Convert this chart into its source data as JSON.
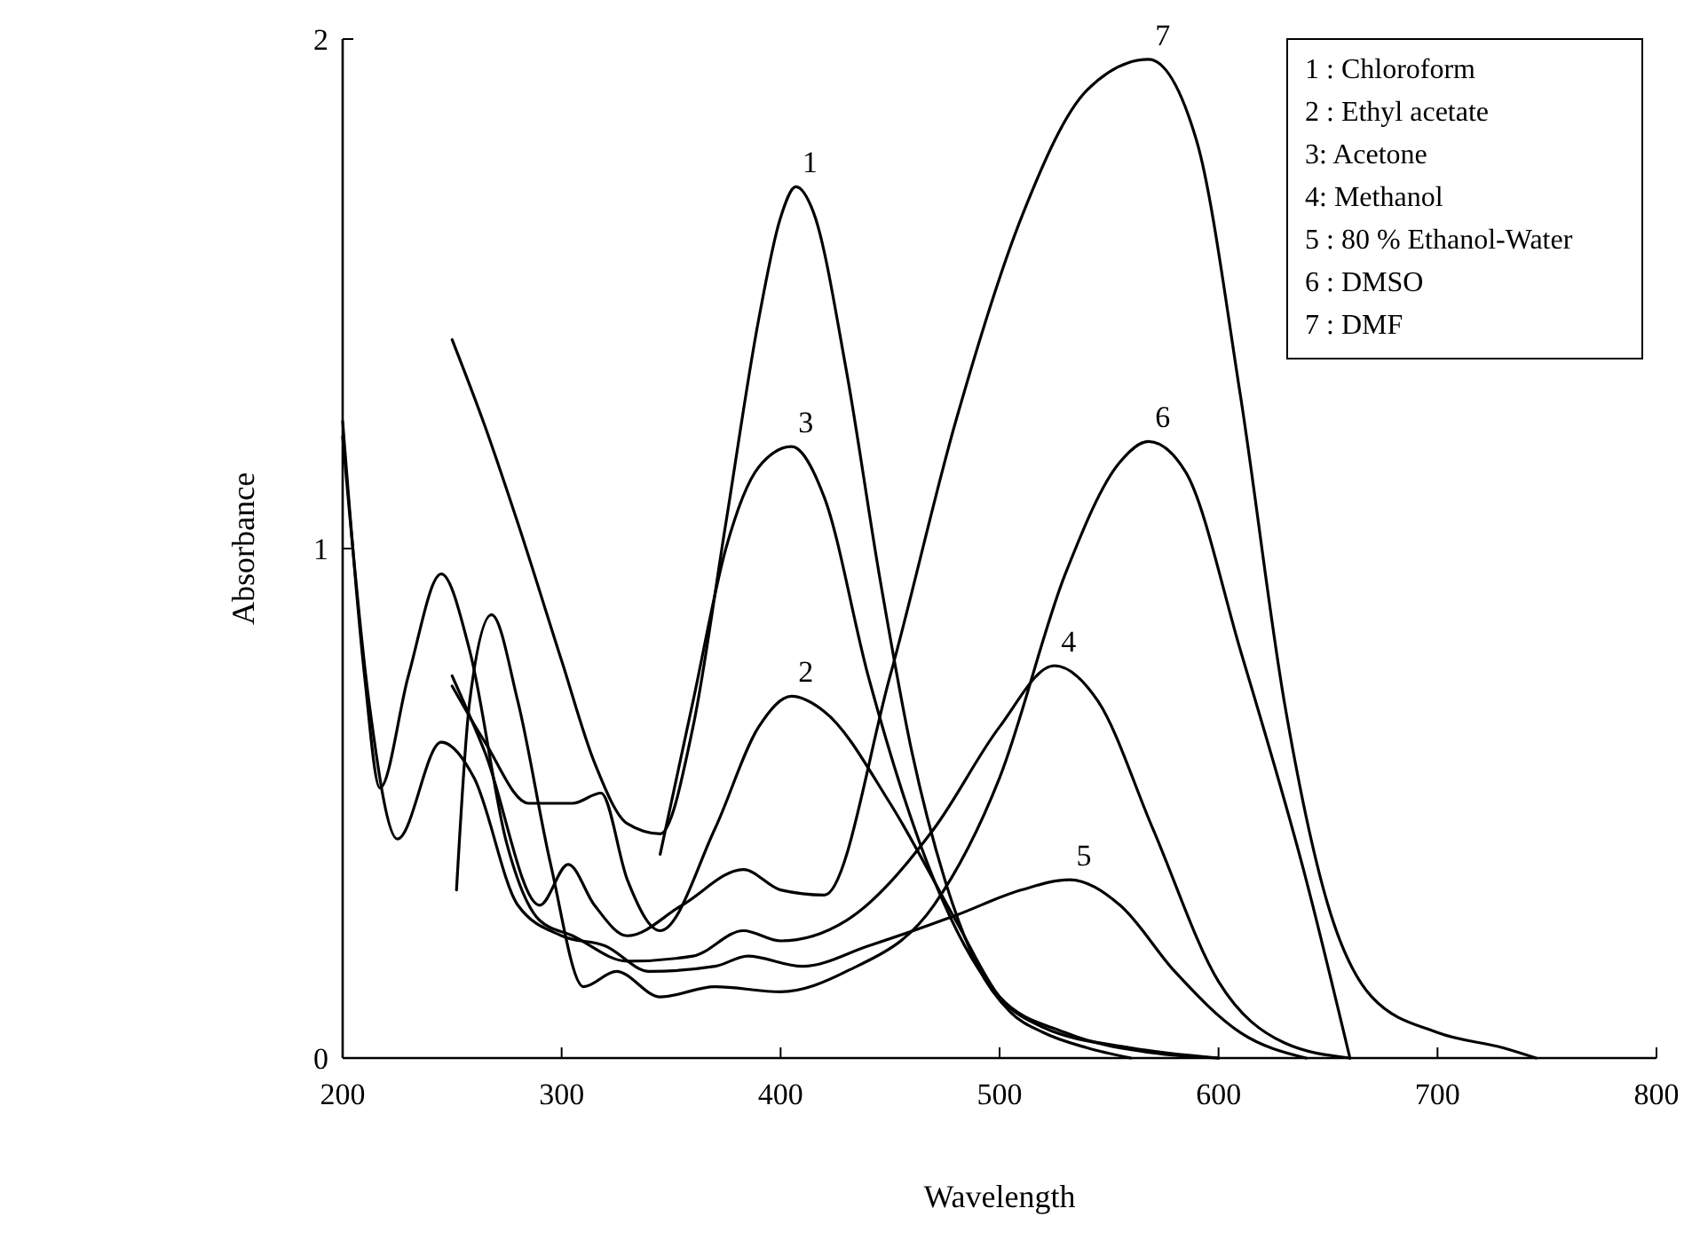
{
  "chart_data": {
    "type": "line",
    "xlabel": "Wavelength",
    "ylabel": "Absorbance",
    "xlim": [
      200,
      800
    ],
    "ylim": [
      0,
      2
    ],
    "xticks": [
      200,
      300,
      400,
      500,
      600,
      700,
      800
    ],
    "yticks": [
      0,
      1,
      2
    ],
    "grid": false,
    "series": [
      {
        "name": "1",
        "color": "#000000",
        "x": [
          250,
          265,
          280,
          300,
          315,
          330,
          345,
          360,
          375,
          390,
          400,
          407,
          415,
          430,
          445,
          460,
          475,
          490,
          505,
          520,
          540,
          560
        ],
        "values": [
          1.41,
          1.24,
          1.05,
          0.78,
          0.58,
          0.46,
          0.44,
          0.65,
          1.05,
          1.45,
          1.65,
          1.71,
          1.66,
          1.35,
          0.95,
          0.6,
          0.35,
          0.18,
          0.09,
          0.05,
          0.02,
          0
        ]
      },
      {
        "name": "2",
        "color": "#000000",
        "x": [
          250,
          265,
          285,
          305,
          318,
          330,
          345,
          370,
          390,
          405,
          420,
          450,
          480,
          500,
          520,
          560,
          600
        ],
        "values": [
          0.73,
          0.62,
          0.5,
          0.5,
          0.52,
          0.35,
          0.25,
          0.45,
          0.65,
          0.71,
          0.68,
          0.5,
          0.27,
          0.12,
          0.06,
          0.02,
          0
        ]
      },
      {
        "name": "3",
        "color": "#000000",
        "x": [
          345,
          360,
          375,
          390,
          405,
          420,
          440,
          470,
          500,
          530,
          570,
          600
        ],
        "values": [
          0.4,
          0.7,
          1.0,
          1.16,
          1.2,
          1.1,
          0.75,
          0.35,
          0.12,
          0.05,
          0.01,
          0
        ]
      },
      {
        "name": "4",
        "color": "#000000",
        "x": [
          200,
          210,
          217,
          230,
          245,
          258,
          275,
          290,
          305,
          330,
          360,
          383,
          400,
          430,
          470,
          500,
          525,
          545,
          570,
          600,
          630,
          660
        ],
        "values": [
          1.25,
          0.75,
          0.53,
          0.75,
          0.95,
          0.8,
          0.42,
          0.27,
          0.24,
          0.19,
          0.2,
          0.25,
          0.23,
          0.27,
          0.45,
          0.65,
          0.77,
          0.7,
          0.45,
          0.15,
          0.03,
          0
        ]
      },
      {
        "name": "5",
        "color": "#000000",
        "x": [
          200,
          212,
          225,
          245,
          260,
          280,
          300,
          320,
          340,
          370,
          385,
          410,
          440,
          480,
          510,
          532,
          555,
          580,
          610,
          640
        ],
        "values": [
          1.22,
          0.7,
          0.43,
          0.62,
          0.55,
          0.3,
          0.24,
          0.22,
          0.17,
          0.18,
          0.2,
          0.18,
          0.22,
          0.28,
          0.33,
          0.35,
          0.3,
          0.17,
          0.05,
          0
        ]
      },
      {
        "name": "6",
        "color": "#000000",
        "x": [
          252,
          258,
          268,
          280,
          295,
          310,
          325,
          345,
          370,
          400,
          430,
          470,
          500,
          530,
          555,
          568,
          585,
          610,
          640,
          660
        ],
        "values": [
          0.33,
          0.7,
          0.87,
          0.7,
          0.38,
          0.14,
          0.17,
          0.12,
          0.14,
          0.13,
          0.17,
          0.3,
          0.55,
          0.95,
          1.17,
          1.21,
          1.15,
          0.8,
          0.35,
          0
        ]
      },
      {
        "name": "7",
        "color": "#000000",
        "x": [
          250,
          265,
          290,
          303,
          315,
          330,
          355,
          383,
          400,
          420,
          450,
          480,
          510,
          540,
          568,
          590,
          610,
          630,
          650,
          670,
          700,
          730,
          745
        ],
        "values": [
          0.75,
          0.6,
          0.3,
          0.38,
          0.3,
          0.24,
          0.3,
          0.37,
          0.33,
          0.32,
          0.75,
          1.25,
          1.65,
          1.9,
          1.96,
          1.8,
          1.3,
          0.7,
          0.3,
          0.12,
          0.05,
          0.02,
          0
        ]
      }
    ],
    "annotations": [
      "1 : Chloroform",
      "2 : Ethyl acetate",
      "3: Acetone",
      "4: Methanol",
      "5 : 80 % Ethanol-Water",
      "6 : DMSO",
      "7 : DMF"
    ]
  }
}
